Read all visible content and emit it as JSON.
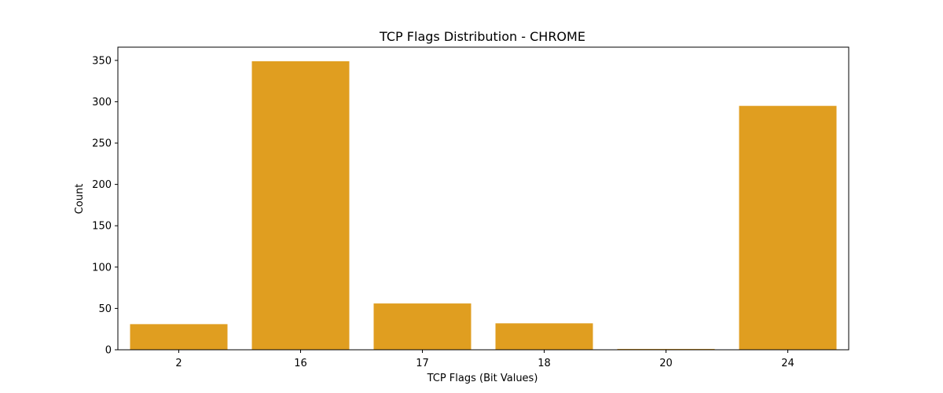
{
  "chart_data": {
    "type": "bar",
    "title": "TCP Flags Distribution - CHROME",
    "xlabel": "TCP Flags (Bit Values)",
    "ylabel": "Count",
    "categories": [
      "2",
      "16",
      "17",
      "18",
      "20",
      "24"
    ],
    "values": [
      31,
      349,
      56,
      32,
      1,
      295
    ],
    "ylim": [
      0,
      366
    ],
    "yticks": [
      0,
      50,
      100,
      150,
      200,
      250,
      300,
      350
    ],
    "ytick_labels": [
      "0",
      "50",
      "100",
      "150",
      "200",
      "250",
      "300",
      "350"
    ],
    "bar_color": "#e09e20",
    "grid": false,
    "legend": false
  }
}
